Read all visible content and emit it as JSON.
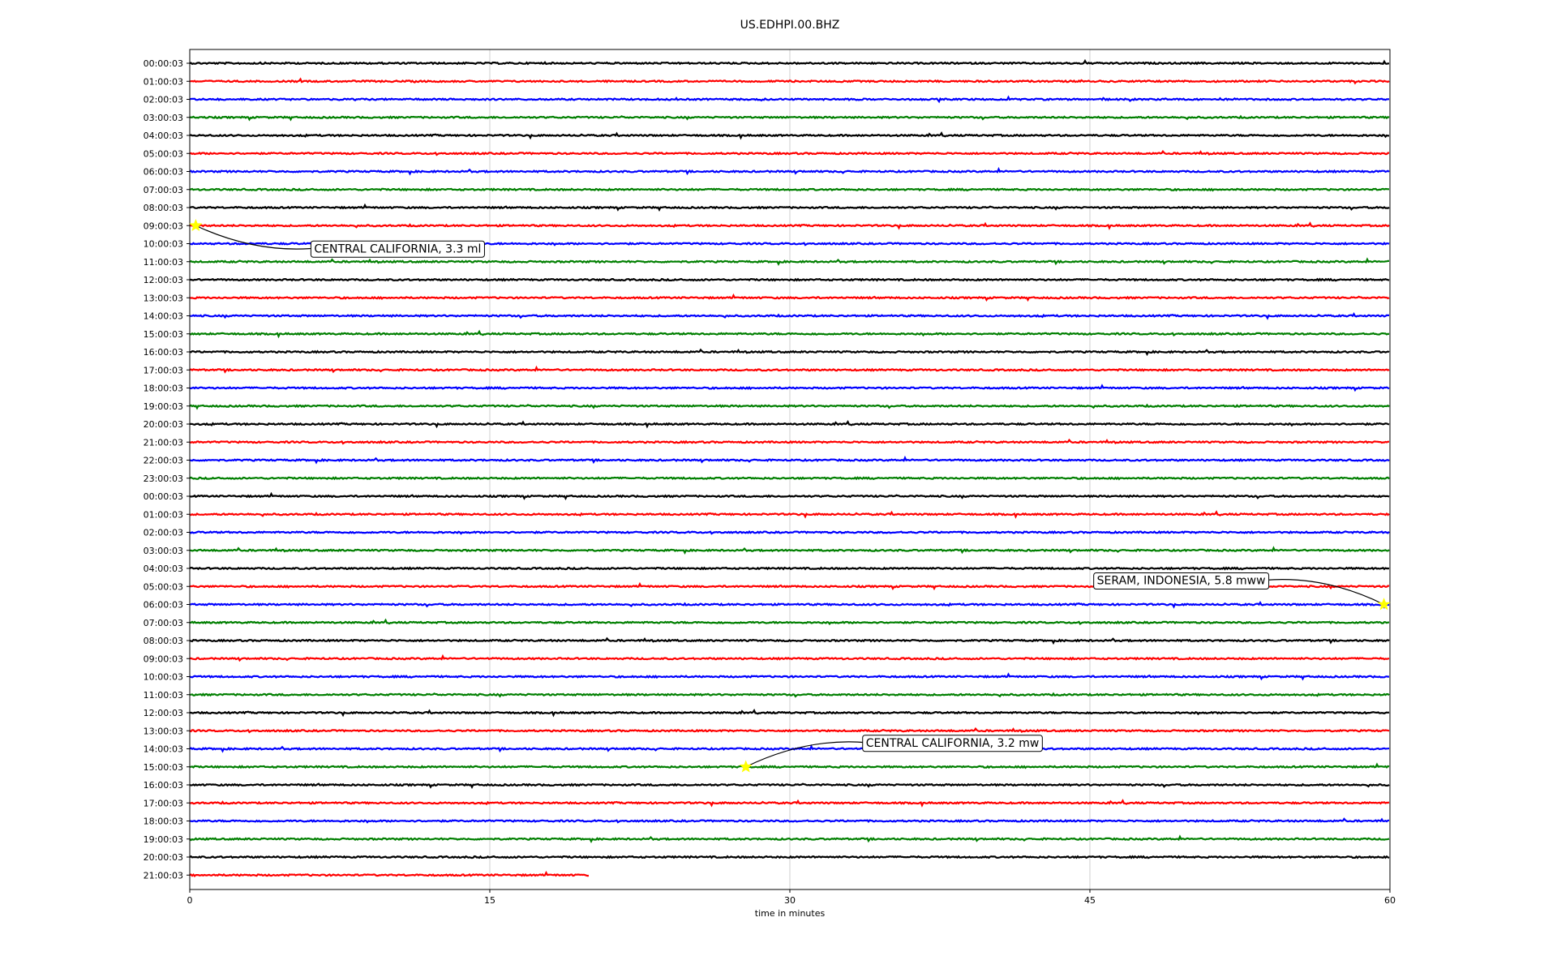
{
  "chart_data": {
    "type": "line",
    "title": "US.EDHPI.00.BHZ",
    "xlabel": "time in minutes",
    "ylabel": "",
    "xlim": [
      0,
      60
    ],
    "x_ticks": [
      0,
      15,
      30,
      45,
      60
    ],
    "grid": "vertical",
    "colors": [
      "#000000",
      "#ff0000",
      "#0000ff",
      "#007f00"
    ],
    "row_labels": [
      "00:00:03",
      "01:00:03",
      "02:00:03",
      "03:00:03",
      "04:00:03",
      "05:00:03",
      "06:00:03",
      "07:00:03",
      "08:00:03",
      "09:00:03",
      "10:00:03",
      "11:00:03",
      "12:00:03",
      "13:00:03",
      "14:00:03",
      "15:00:03",
      "16:00:03",
      "17:00:03",
      "18:00:03",
      "19:00:03",
      "20:00:03",
      "21:00:03",
      "22:00:03",
      "23:00:03",
      "00:00:03",
      "01:00:03",
      "02:00:03",
      "03:00:03",
      "04:00:03",
      "05:00:03",
      "06:00:03",
      "07:00:03",
      "08:00:03",
      "09:00:03",
      "10:00:03",
      "11:00:03",
      "12:00:03",
      "13:00:03",
      "14:00:03",
      "15:00:03",
      "16:00:03",
      "17:00:03",
      "18:00:03",
      "19:00:03",
      "20:00:03",
      "21:00:03"
    ],
    "last_row_end_minute": 20,
    "events": [
      {
        "label": "CENTRAL CALIFORNIA, 3.3 ml",
        "row": 9,
        "minute": 0.3
      },
      {
        "label": "SERAM, INDONESIA, 5.8 mww",
        "row": 30,
        "minute": 59.7
      },
      {
        "label": "CENTRAL CALIFORNIA, 3.2 mw",
        "row": 39,
        "minute": 27.8
      }
    ],
    "marker_color": "#ffff00"
  }
}
